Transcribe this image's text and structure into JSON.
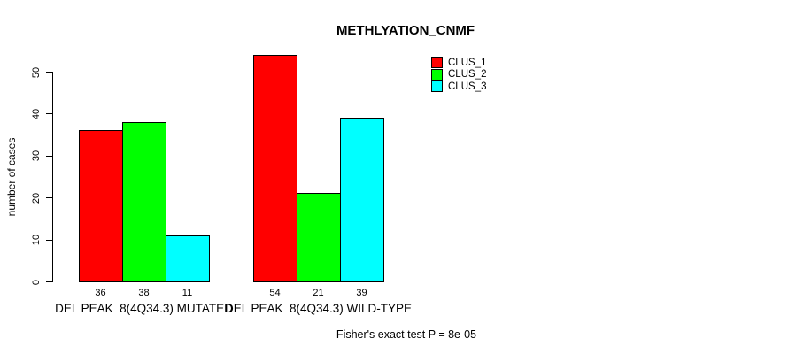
{
  "chart_data": {
    "type": "bar",
    "title": "METHLYATION_CNMF",
    "ylabel": "number of cases",
    "xlabel": "",
    "footnote": "Fisher's exact test P = 8e-05",
    "categories": [
      "DEL PEAK  8(4Q34.3) MUTATED",
      "DEL PEAK  8(4Q34.3) WILD-TYPE"
    ],
    "series": [
      {
        "name": "CLUS_1",
        "color": "#FF0000",
        "values": [
          36,
          54
        ]
      },
      {
        "name": "CLUS_2",
        "color": "#00FF00",
        "values": [
          38,
          21
        ]
      },
      {
        "name": "CLUS_3",
        "color": "#00FFFF",
        "values": [
          11,
          39
        ]
      }
    ],
    "bar_value_labels": [
      [
        36,
        38,
        11
      ],
      [
        54,
        21,
        39
      ]
    ],
    "y_ticks": [
      0,
      10,
      20,
      30,
      40,
      50
    ],
    "ylim": [
      0,
      54
    ],
    "grid": false,
    "legend_position": "top-right",
    "axis_color": "#000000",
    "background_color": "#FFFFFF"
  }
}
